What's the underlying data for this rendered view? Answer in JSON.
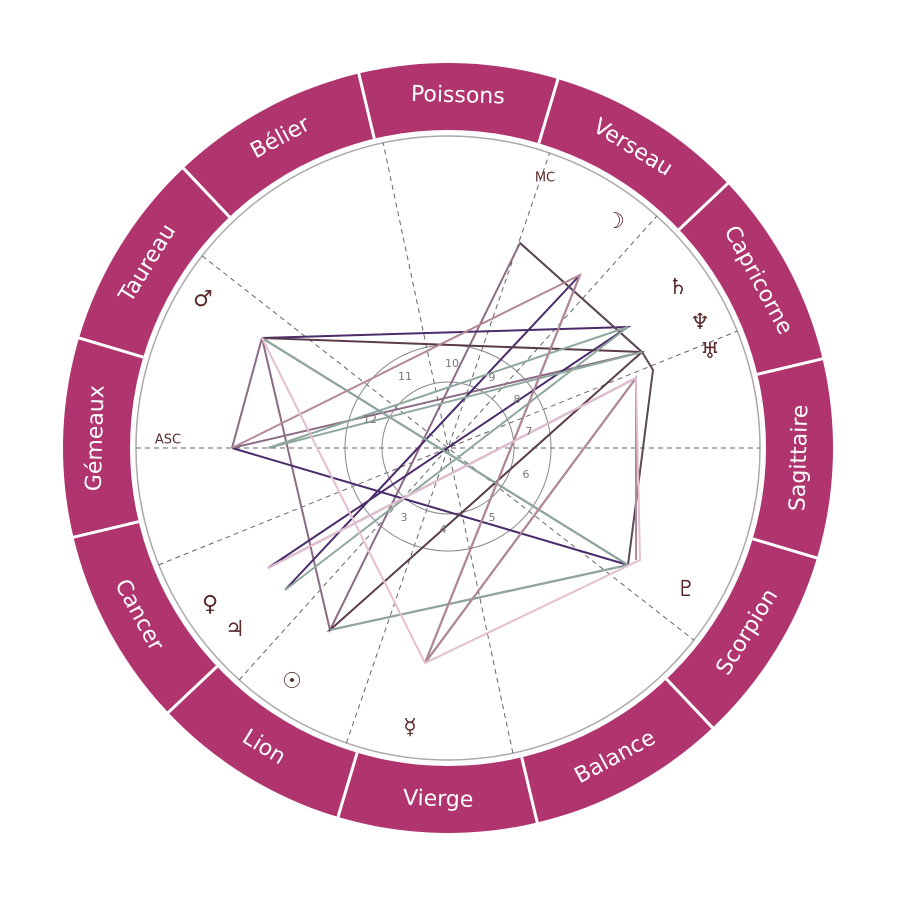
{
  "zodiac_signs": [
    "Poissons",
    "Verseau",
    "Capricorne",
    "Sagittaire",
    "Scorpion",
    "Balance",
    "Vierge",
    "Lion",
    "Cancer",
    "Gémeaux",
    "Taureau",
    "Bélier"
  ],
  "angles": {
    "asc": "ASC",
    "mc": "MC"
  },
  "planets": [
    "♂",
    "☽",
    "♄",
    "♆",
    "♅",
    "♇",
    "☿",
    "☉",
    "♀",
    "♃"
  ],
  "houses": [
    "10",
    "11",
    "12",
    "9",
    "8",
    "7",
    "6",
    "5",
    "4",
    "3"
  ]
}
